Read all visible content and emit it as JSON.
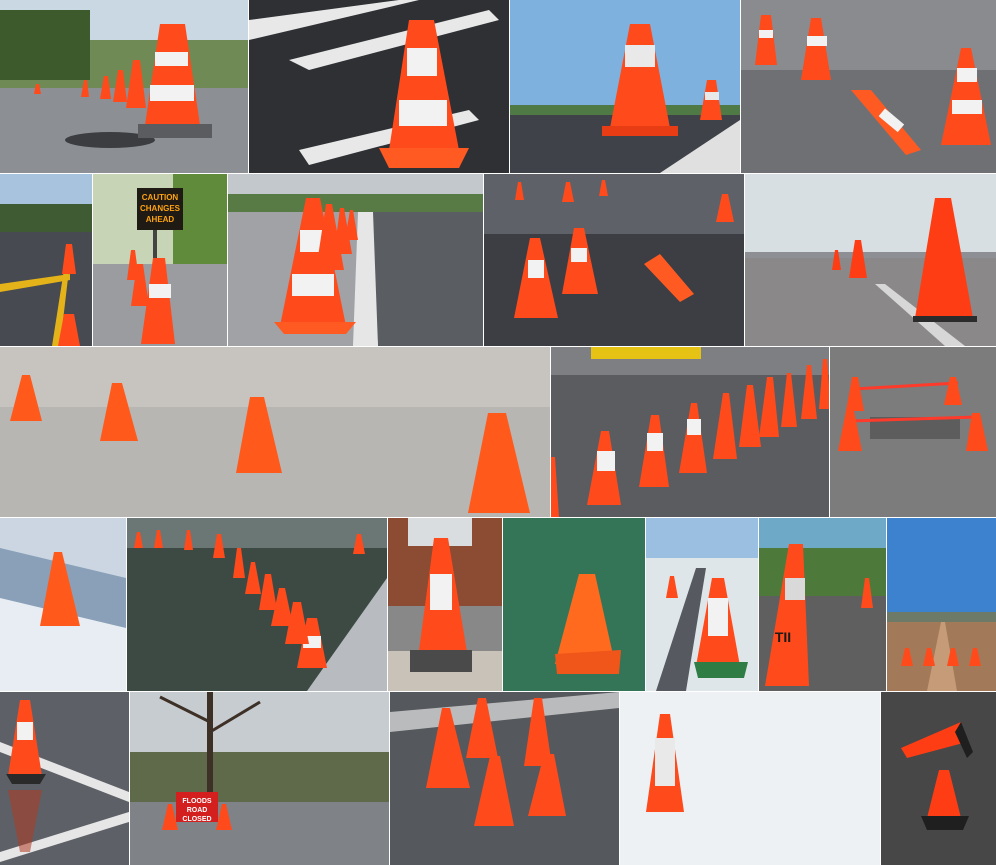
{
  "collage": {
    "colors": {
      "cone_orange": "#ff4a1c",
      "cone_white": "#f2f2f2",
      "asphalt": "#3a3d42",
      "sky": "#9cc4e4"
    },
    "signs": {
      "caution_line1": "CAUTION",
      "caution_line2": "CHANGES",
      "caution_line3": "AHEAD",
      "floods_line1": "FLOODS",
      "floods_line2": "ROAD",
      "floods_line3": "CLOSED",
      "cone_marking": "TII"
    }
  }
}
